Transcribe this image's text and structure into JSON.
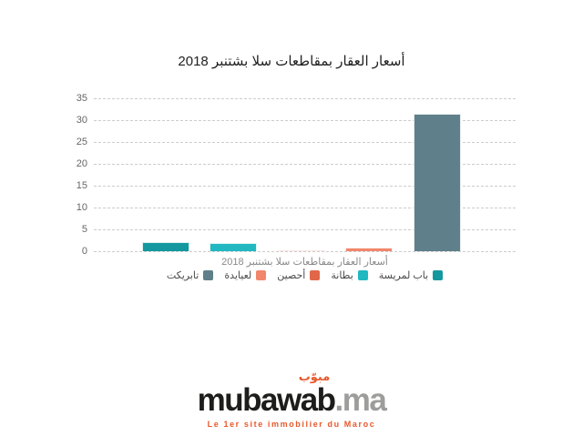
{
  "chart_data": {
    "type": "bar",
    "title": "أسعار العقار بمقاطعات سلا بشتنبر 2018",
    "xlabel": "أسعار العقار بمقاطعات سلا بشتنبر 2018",
    "ylabel": "",
    "ylim": [
      0,
      35
    ],
    "yticks": [
      0,
      5,
      10,
      15,
      20,
      25,
      30,
      35
    ],
    "grid": "horizontal-dashed",
    "legend_position": "bottom",
    "rtl": true,
    "categories": [
      "باب لمريسة",
      "بطانة",
      "أحصين",
      "لعيايدة",
      "تابريكت"
    ],
    "series": [
      {
        "name": "باب لمريسة",
        "slug": "bab-lamrissa",
        "value": 2.0,
        "color": "#14989f"
      },
      {
        "name": "بطانة",
        "slug": "bettana",
        "value": 1.8,
        "color": "#21b8c2"
      },
      {
        "name": "أحصين",
        "slug": "hssaine",
        "value": 0.3,
        "color": "#e2674a"
      },
      {
        "name": "لعيايدة",
        "slug": "laayayda",
        "value": 0.8,
        "color": "#f2866c"
      },
      {
        "name": "تابريكت",
        "slug": "tabriquet",
        "value": 31.5,
        "color": "#5f7f8a"
      }
    ]
  },
  "branding": {
    "logo_arabic": "مبوّب",
    "logo_main": "mubawab",
    "logo_tld": ".ma",
    "tagline": "Le 1er site immobilier du Maroc",
    "colors": {
      "orange": "#e8582b",
      "black": "#1d1d1b",
      "gray": "#9d9d9c"
    }
  }
}
